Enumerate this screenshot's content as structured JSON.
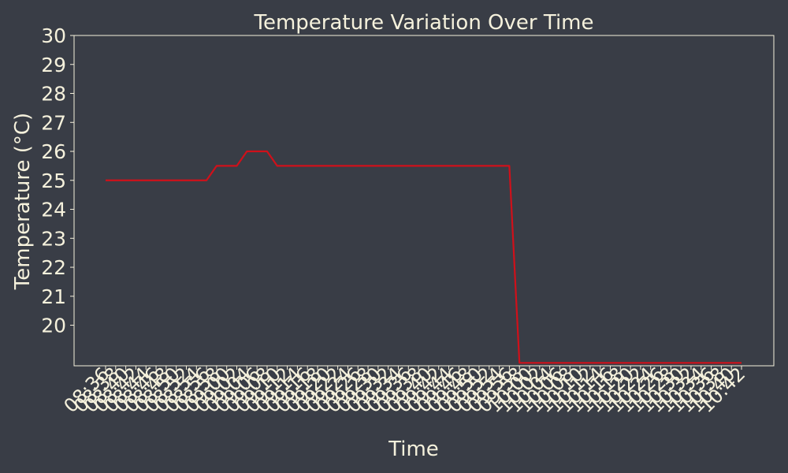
{
  "chart_data": {
    "type": "line",
    "title": "Temperature Variation Over Time",
    "xlabel": "Time",
    "ylabel": "Temperature (°C)",
    "ylim": [
      18.6,
      30
    ],
    "yticks": [
      20,
      21,
      22,
      23,
      24,
      25,
      26,
      27,
      28,
      29,
      30
    ],
    "grid": false,
    "x": [
      "08:36",
      "08:38",
      "08:40",
      "08:42",
      "08:44",
      "08:46",
      "08:48",
      "08:50",
      "08:52",
      "08:54",
      "08:56",
      "08:58",
      "09:00",
      "09:02",
      "09:04",
      "09:06",
      "09:08",
      "09:10",
      "09:12",
      "09:14",
      "09:16",
      "09:18",
      "09:20",
      "09:22",
      "09:24",
      "09:26",
      "09:28",
      "09:30",
      "09:32",
      "09:34",
      "09:36",
      "09:38",
      "09:40",
      "09:42",
      "09:44",
      "09:46",
      "09:48",
      "09:50",
      "09:52",
      "09:54",
      "09:56",
      "09:58",
      "10:00",
      "10:02",
      "10:04",
      "10:06",
      "10:08",
      "10:10",
      "10:12",
      "10:14",
      "10:16",
      "10:18",
      "10:20",
      "10:22",
      "10:24",
      "10:26",
      "10:28",
      "10:30",
      "10:32",
      "10:34",
      "10:36",
      "10:38",
      "10:40",
      "10:42"
    ],
    "series": [
      {
        "name": "Temperature",
        "color": "#d0101a",
        "values": [
          25,
          25,
          25,
          25,
          25,
          25,
          25,
          25,
          25,
          25,
          25,
          25.5,
          25.5,
          25.5,
          26,
          26,
          26,
          25.5,
          25.5,
          25.5,
          25.5,
          25.5,
          25.5,
          25.5,
          25.5,
          25.5,
          25.5,
          25.5,
          25.5,
          25.5,
          25.5,
          25.5,
          25.5,
          25.5,
          25.5,
          25.5,
          25.5,
          25.5,
          25.5,
          25.5,
          25.5,
          18.7,
          18.7,
          18.7,
          18.7,
          18.7,
          18.7,
          18.7,
          18.7,
          18.7,
          18.7,
          18.7,
          18.7,
          18.7,
          18.7,
          18.7,
          18.7,
          18.7,
          18.7,
          18.7,
          18.7,
          18.7,
          18.7,
          18.7
        ]
      }
    ]
  },
  "colors": {
    "background": "#393d46",
    "text": "#f5f1dc",
    "line": "#d0101a"
  }
}
